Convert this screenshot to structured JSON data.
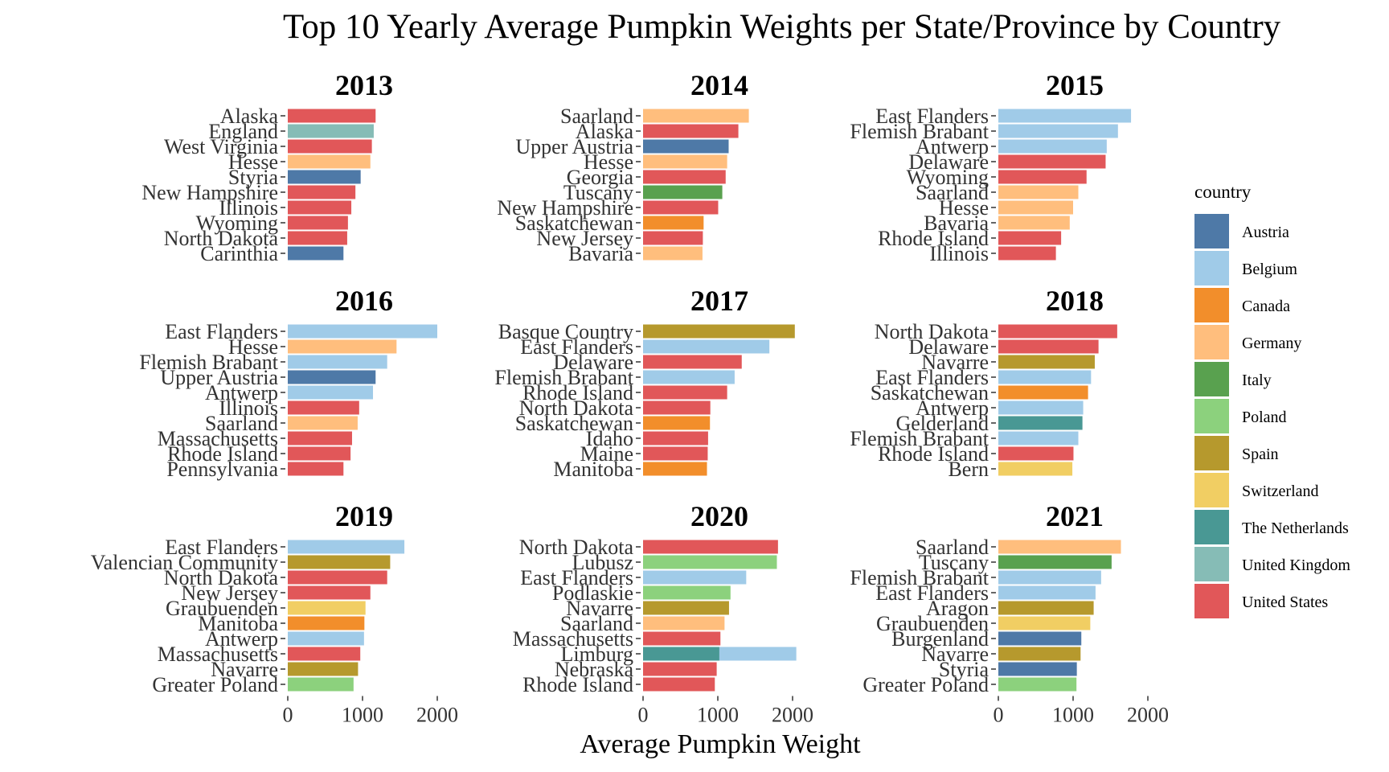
{
  "chart_data": {
    "type": "bar",
    "orientation": "horizontal",
    "title": "Top 10 Yearly Average Pumpkin Weights per State/Province by Country",
    "xlabel": "Average Pumpkin Weight",
    "xlim": [
      0,
      2150
    ],
    "xticks": [
      0,
      1000,
      2000
    ],
    "grid": false,
    "legend": {
      "title": "country",
      "placement": "right",
      "entries": [
        {
          "name": "Austria",
          "color": "#4e79a7"
        },
        {
          "name": "Belgium",
          "color": "#a0cbe8"
        },
        {
          "name": "Canada",
          "color": "#f28e2b"
        },
        {
          "name": "Germany",
          "color": "#ffbe7d"
        },
        {
          "name": "Italy",
          "color": "#59a14f"
        },
        {
          "name": "Poland",
          "color": "#8cd17d"
        },
        {
          "name": "Spain",
          "color": "#b6992d"
        },
        {
          "name": "Switzerland",
          "color": "#f1ce63"
        },
        {
          "name": "The Netherlands",
          "color": "#499894"
        },
        {
          "name": "United Kingdom",
          "color": "#86bcb6"
        },
        {
          "name": "United States",
          "color": "#e15759"
        }
      ]
    },
    "panels": [
      {
        "title": "2013",
        "bars": [
          {
            "label": "Alaska",
            "country": "United States",
            "value": 1175
          },
          {
            "label": "England",
            "country": "United Kingdom",
            "value": 1150
          },
          {
            "label": "West Virginia",
            "country": "United States",
            "value": 1125
          },
          {
            "label": "Hesse",
            "country": "Germany",
            "value": 1105
          },
          {
            "label": "Styria",
            "country": "Austria",
            "value": 975
          },
          {
            "label": "New Hampshire",
            "country": "United States",
            "value": 905
          },
          {
            "label": "Illinois",
            "country": "United States",
            "value": 850
          },
          {
            "label": "Wyoming",
            "country": "United States",
            "value": 805
          },
          {
            "label": "North Dakota",
            "country": "United States",
            "value": 795
          },
          {
            "label": "Carinthia",
            "country": "Austria",
            "value": 745
          }
        ]
      },
      {
        "title": "2014",
        "bars": [
          {
            "label": "Saarland",
            "country": "Germany",
            "value": 1415
          },
          {
            "label": "Alaska",
            "country": "United States",
            "value": 1275
          },
          {
            "label": "Upper Austria",
            "country": "Austria",
            "value": 1145
          },
          {
            "label": "Hesse",
            "country": "Germany",
            "value": 1125
          },
          {
            "label": "Georgia",
            "country": "United States",
            "value": 1105
          },
          {
            "label": "Tuscany",
            "country": "Italy",
            "value": 1060
          },
          {
            "label": "New Hampshire",
            "country": "United States",
            "value": 1005
          },
          {
            "label": "Saskatchewan",
            "country": "Canada",
            "value": 810
          },
          {
            "label": "New Jersey",
            "country": "United States",
            "value": 800
          },
          {
            "label": "Bavaria",
            "country": "Germany",
            "value": 795
          }
        ]
      },
      {
        "title": "2015",
        "bars": [
          {
            "label": "East Flanders",
            "country": "Belgium",
            "value": 1775
          },
          {
            "label": "Flemish Brabant",
            "country": "Belgium",
            "value": 1600
          },
          {
            "label": "Antwerp",
            "country": "Belgium",
            "value": 1450
          },
          {
            "label": "Delaware",
            "country": "United States",
            "value": 1435
          },
          {
            "label": "Wyoming",
            "country": "United States",
            "value": 1180
          },
          {
            "label": "Saarland",
            "country": "Germany",
            "value": 1070
          },
          {
            "label": "Hesse",
            "country": "Germany",
            "value": 1000
          },
          {
            "label": "Bavaria",
            "country": "Germany",
            "value": 955
          },
          {
            "label": "Rhode Island",
            "country": "United States",
            "value": 840
          },
          {
            "label": "Illinois",
            "country": "United States",
            "value": 770
          }
        ]
      },
      {
        "title": "2016",
        "bars": [
          {
            "label": "East Flanders",
            "country": "Belgium",
            "value": 2000
          },
          {
            "label": "Hesse",
            "country": "Germany",
            "value": 1455
          },
          {
            "label": "Flemish Brabant",
            "country": "Belgium",
            "value": 1330
          },
          {
            "label": "Upper Austria",
            "country": "Austria",
            "value": 1175
          },
          {
            "label": "Antwerp",
            "country": "Belgium",
            "value": 1140
          },
          {
            "label": "Illinois",
            "country": "United States",
            "value": 955
          },
          {
            "label": "Saarland",
            "country": "Germany",
            "value": 935
          },
          {
            "label": "Massachusetts",
            "country": "United States",
            "value": 860
          },
          {
            "label": "Rhode Island",
            "country": "United States",
            "value": 840
          },
          {
            "label": "Pennsylvania",
            "country": "United States",
            "value": 745
          }
        ]
      },
      {
        "title": "2017",
        "bars": [
          {
            "label": "Basque Country",
            "country": "Spain",
            "value": 2030
          },
          {
            "label": "East Flanders",
            "country": "Belgium",
            "value": 1690
          },
          {
            "label": "Delaware",
            "country": "United States",
            "value": 1320
          },
          {
            "label": "Flemish Brabant",
            "country": "Belgium",
            "value": 1225
          },
          {
            "label": "Rhode Island",
            "country": "United States",
            "value": 1125
          },
          {
            "label": "North Dakota",
            "country": "United States",
            "value": 900
          },
          {
            "label": "Saskatchewan",
            "country": "Canada",
            "value": 895
          },
          {
            "label": "Idaho",
            "country": "United States",
            "value": 870
          },
          {
            "label": "Maine",
            "country": "United States",
            "value": 865
          },
          {
            "label": "Manitoba",
            "country": "Canada",
            "value": 855
          }
        ]
      },
      {
        "title": "2018",
        "bars": [
          {
            "label": "North Dakota",
            "country": "United States",
            "value": 1590
          },
          {
            "label": "Delaware",
            "country": "United States",
            "value": 1340
          },
          {
            "label": "Navarre",
            "country": "Spain",
            "value": 1290
          },
          {
            "label": "East Flanders",
            "country": "Belgium",
            "value": 1240
          },
          {
            "label": "Saskatchewan",
            "country": "Canada",
            "value": 1200
          },
          {
            "label": "Antwerp",
            "country": "Belgium",
            "value": 1135
          },
          {
            "label": "Gelderland",
            "country": "The Netherlands",
            "value": 1125
          },
          {
            "label": "Flemish Brabant",
            "country": "Belgium",
            "value": 1070
          },
          {
            "label": "Rhode Island",
            "country": "United States",
            "value": 1005
          },
          {
            "label": "Bern",
            "country": "Switzerland",
            "value": 990
          }
        ]
      },
      {
        "title": "2019",
        "bars": [
          {
            "label": "East Flanders",
            "country": "Belgium",
            "value": 1560
          },
          {
            "label": "Valencian Community",
            "country": "Spain",
            "value": 1370
          },
          {
            "label": "North Dakota",
            "country": "United States",
            "value": 1330
          },
          {
            "label": "New Jersey",
            "country": "United States",
            "value": 1105
          },
          {
            "label": "Graubuenden",
            "country": "Switzerland",
            "value": 1040
          },
          {
            "label": "Manitoba",
            "country": "Canada",
            "value": 1025
          },
          {
            "label": "Antwerp",
            "country": "Belgium",
            "value": 1020
          },
          {
            "label": "Massachusetts",
            "country": "United States",
            "value": 970
          },
          {
            "label": "Navarre",
            "country": "Spain",
            "value": 940
          },
          {
            "label": "Greater Poland",
            "country": "Poland",
            "value": 880
          }
        ]
      },
      {
        "title": "2020",
        "bars": [
          {
            "label": "North Dakota",
            "country": "United States",
            "value": 1805
          },
          {
            "label": "Lubusz",
            "country": "Poland",
            "value": 1790
          },
          {
            "label": "East Flanders",
            "country": "Belgium",
            "value": 1380
          },
          {
            "label": "Podlaskie",
            "country": "Poland",
            "value": 1170
          },
          {
            "label": "Navarre",
            "country": "Spain",
            "value": 1150
          },
          {
            "label": "Saarland",
            "country": "Germany",
            "value": 1090
          },
          {
            "label": "Massachusetts",
            "country": "United States",
            "value": 1035
          },
          {
            "label": "Limburg",
            "country": "The Netherlands",
            "value": 1020,
            "overlay": {
              "country": "Belgium",
              "value": 2050
            }
          },
          {
            "label": "Nebraska",
            "country": "United States",
            "value": 985
          },
          {
            "label": "Rhode Island",
            "country": "United States",
            "value": 960
          }
        ]
      },
      {
        "title": "2021",
        "bars": [
          {
            "label": "Saarland",
            "country": "Germany",
            "value": 1640
          },
          {
            "label": "Tuscany",
            "country": "Italy",
            "value": 1515
          },
          {
            "label": "Flemish Brabant",
            "country": "Belgium",
            "value": 1375
          },
          {
            "label": "East Flanders",
            "country": "Belgium",
            "value": 1300
          },
          {
            "label": "Aragon",
            "country": "Spain",
            "value": 1275
          },
          {
            "label": "Graubuenden",
            "country": "Switzerland",
            "value": 1230
          },
          {
            "label": "Burgenland",
            "country": "Austria",
            "value": 1110
          },
          {
            "label": "Navarre",
            "country": "Spain",
            "value": 1100
          },
          {
            "label": "Styria",
            "country": "Austria",
            "value": 1050
          },
          {
            "label": "Greater Poland",
            "country": "Poland",
            "value": 1045
          }
        ]
      }
    ]
  }
}
